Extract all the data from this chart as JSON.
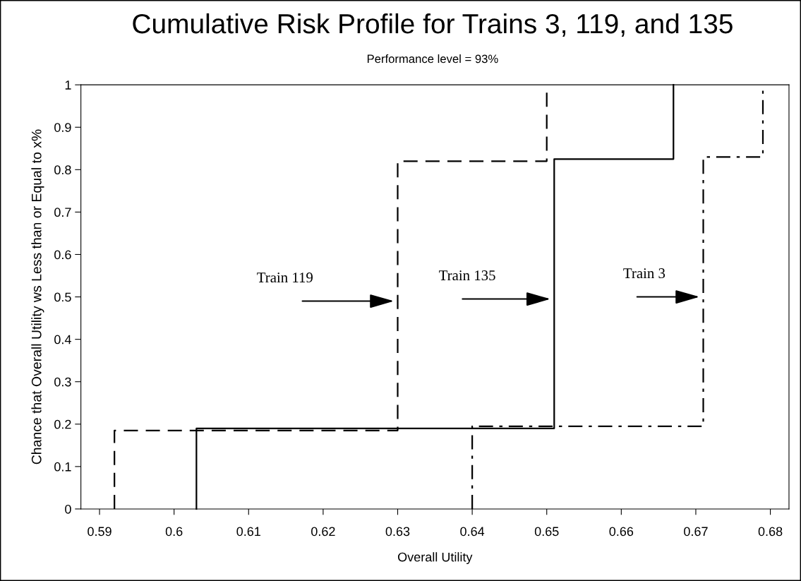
{
  "chart_data": {
    "type": "step",
    "title": "Cumulative Risk Profile for Trains 3, 119, and 135",
    "subtitle": "Performance level = 93%",
    "xlabel": "Overall Utility",
    "ylabel": "Chance that Overall Utility ws Less than or Equal to x%",
    "series": [
      {
        "x": [
          0.592,
          0.592,
          0.63,
          0.65
        ],
        "values": [
          0,
          0.185,
          0.82,
          1
        ],
        "color": "#000000",
        "line_style": "dashed"
      },
      {
        "x": [
          0.603,
          0.603,
          0.651,
          0.667
        ],
        "values": [
          0,
          0.19,
          0.825,
          1
        ],
        "color": "#000000",
        "line_style": "solid"
      },
      {
        "x": [
          0.64,
          0.64,
          0.671,
          0.679
        ],
        "values": [
          0,
          0.195,
          0.83,
          1
        ],
        "color": "#000000",
        "line_style": "dashdot"
      }
    ],
    "annotations": [
      {
        "text": "Train 119",
        "x": 0.6295,
        "y": 0.49
      },
      {
        "text": "Train 135",
        "x": 0.6505,
        "y": 0.495
      },
      {
        "text": "Train 3",
        "x": 0.6705,
        "y": 0.5
      }
    ],
    "xlim": [
      0.5875,
      0.6825
    ],
    "xticks": [
      0.59,
      0.6,
      0.61,
      0.62,
      0.63,
      0.64,
      0.65,
      0.66,
      0.67,
      0.68
    ],
    "ylim": [
      0,
      1
    ],
    "yticks": [
      0,
      0.1,
      0.2,
      0.3,
      0.4,
      0.5,
      0.6,
      0.7,
      0.8,
      0.9,
      1
    ],
    "grid": false,
    "legend": false,
    "marker": "none"
  }
}
